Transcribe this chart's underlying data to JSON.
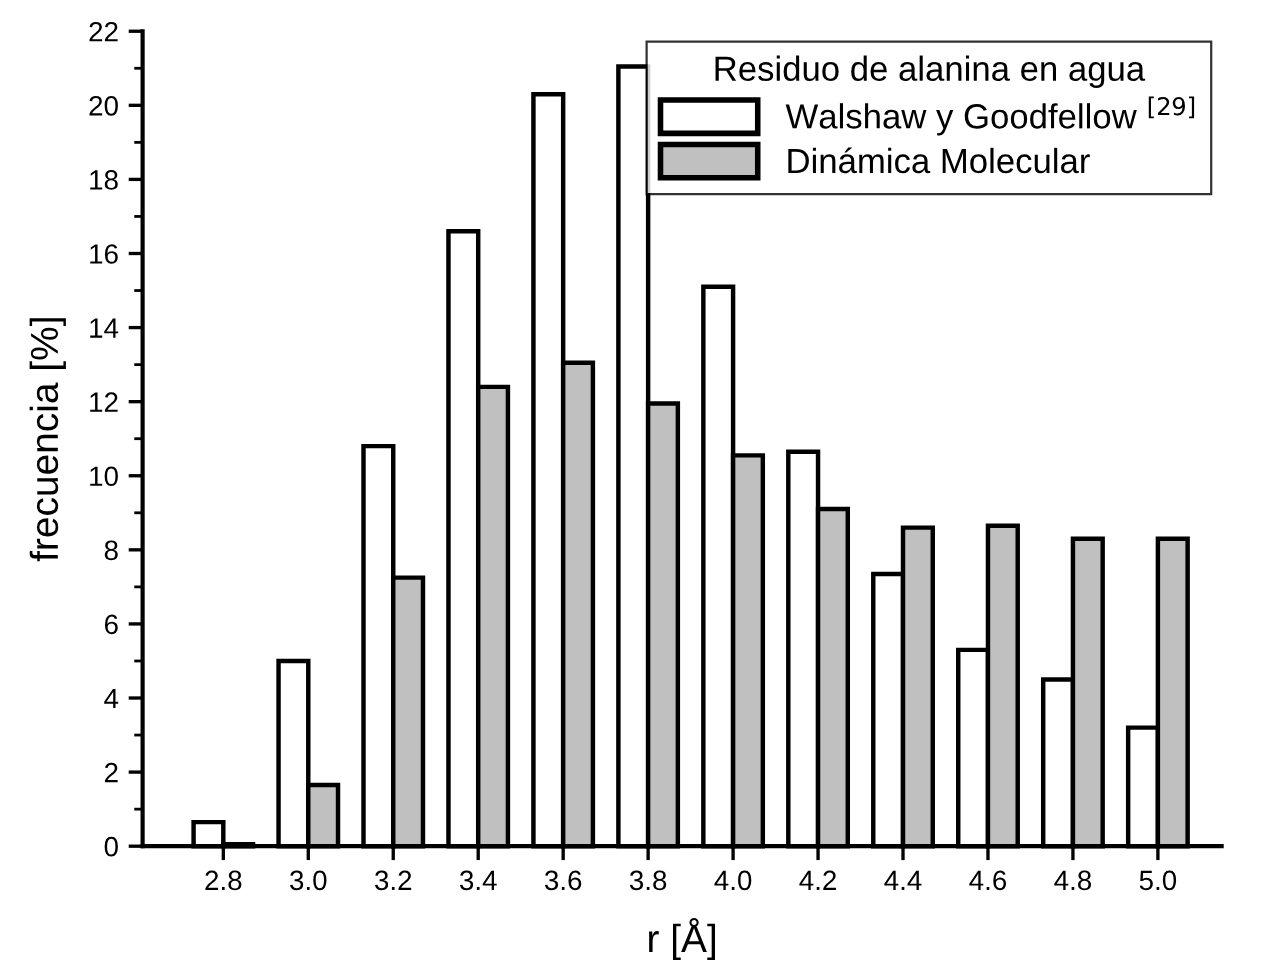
{
  "chart_data": {
    "type": "bar",
    "xlabel": "r [Å]",
    "ylabel": "frecuencia [%]",
    "legend_title": "Residuo de alanina en agua",
    "x": [
      2.8,
      3.0,
      3.2,
      3.4,
      3.6,
      3.8,
      4.0,
      4.2,
      4.4,
      4.6,
      4.8,
      5.0
    ],
    "series": [
      {
        "name": "Walshaw y Goodfellow $^{[29]}$",
        "color": "#ffffff",
        "values": [
          0.65,
          5.0,
          10.8,
          16.6,
          20.3,
          21.05,
          15.1,
          10.65,
          7.35,
          5.3,
          4.5,
          3.2
        ]
      },
      {
        "name": "Dinámica Molecular",
        "color": "#c0c0c0",
        "values": [
          0.05,
          1.65,
          7.25,
          12.4,
          13.05,
          11.95,
          10.55,
          9.1,
          8.6,
          8.65,
          8.3,
          8.3
        ]
      }
    ],
    "xlim": [
      2.61,
      5.15
    ],
    "xticks": [
      {
        "value": 2.8,
        "label": "2.8"
      },
      {
        "value": 3.0,
        "label": "3.0"
      },
      {
        "value": 3.2,
        "label": "3.2"
      },
      {
        "value": 3.4,
        "label": "3.4"
      },
      {
        "value": 3.6,
        "label": "3.6"
      },
      {
        "value": 3.8,
        "label": "3.8"
      },
      {
        "value": 4.0,
        "label": "4.0"
      },
      {
        "value": 4.2,
        "label": "4.2"
      },
      {
        "value": 4.4,
        "label": "4.4"
      },
      {
        "value": 4.6,
        "label": "4.6"
      },
      {
        "value": 4.8,
        "label": "4.8"
      },
      {
        "value": 5.0,
        "label": "5.0"
      }
    ],
    "ylim": [
      0,
      22
    ],
    "yticks": [
      0,
      2,
      4,
      6,
      8,
      10,
      12,
      14,
      16,
      18,
      20,
      22
    ],
    "grid": false,
    "legend": "top right"
  }
}
